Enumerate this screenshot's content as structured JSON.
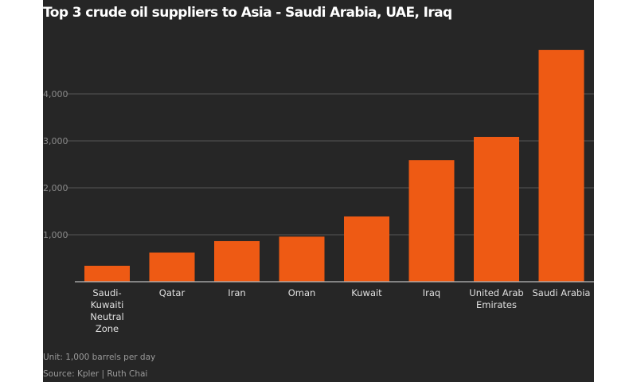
{
  "chart_data": {
    "type": "bar",
    "title": "Top 3 crude oil suppliers to Asia - Saudi Arabia, UAE, Iraq",
    "categories": [
      "Saudi-Kuwaiti Neutral Zone",
      "Qatar",
      "Iran",
      "Oman",
      "Kuwait",
      "Iraq",
      "United Arab Emirates",
      "Saudi Arabia"
    ],
    "category_lines": [
      [
        "Saudi-",
        "Kuwaiti",
        "Neutral",
        "Zone"
      ],
      [
        "Qatar"
      ],
      [
        "Iran"
      ],
      [
        "Oman"
      ],
      [
        "Kuwait"
      ],
      [
        "Iraq"
      ],
      [
        "United Arab",
        "Emirates"
      ],
      [
        "Saudi Arabia"
      ]
    ],
    "values": [
      340,
      620,
      865,
      960,
      1390,
      2590,
      3085,
      4935
    ],
    "yticks": [
      1000,
      2000,
      3000,
      4000
    ],
    "ytick_labels": [
      "1,000",
      "2,000",
      "3,000",
      "4,000"
    ],
    "ylim": [
      0,
      5000
    ],
    "grid": true,
    "bar_color": "#ee5a14",
    "background": "#262626"
  },
  "footer": {
    "unit": "Unit: 1,000 barrels per day",
    "source": "Source: Kpler | Ruth Chai"
  }
}
